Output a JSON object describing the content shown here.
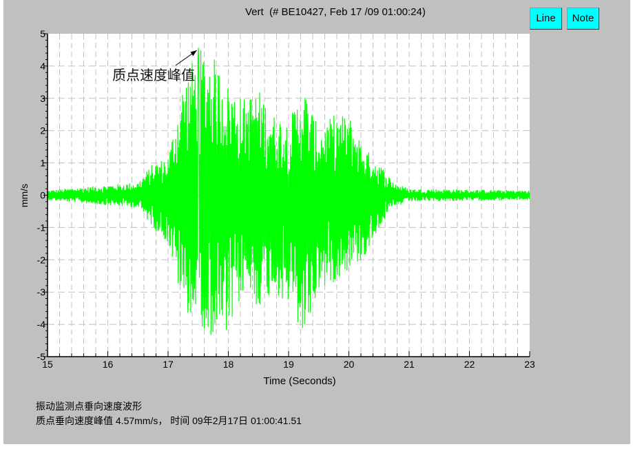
{
  "header": {
    "title": "Vert  (# BE10427, Feb 17 /09 01:00:24)",
    "buttons": [
      {
        "label": "Line"
      },
      {
        "label": "Note"
      }
    ]
  },
  "colors": {
    "background": "#c0c0c0",
    "plot_background": "#ffffff",
    "waveform": "#00ff00",
    "grid": "#c0c0c0",
    "button": "#00ffff"
  },
  "chart_data": {
    "type": "line",
    "title": "Vert  (# BE10427, Feb 17 /09 01:00:24)",
    "xlabel": "Time (Seconds)",
    "ylabel": "mm/s",
    "xlim": [
      15,
      23
    ],
    "ylim": [
      -5,
      5
    ],
    "xticks": [
      "15",
      "16",
      "17",
      "18",
      "19",
      "20",
      "21",
      "22",
      "23"
    ],
    "yticks": [
      "5",
      "4",
      "3",
      "2",
      "1",
      "0",
      "-1",
      "-2",
      "-3",
      "-4",
      "-5"
    ],
    "grid": true,
    "grid_style": "dashed",
    "annotation": {
      "text": "质点速度峰值",
      "x": 17.5,
      "y": 4.57
    },
    "peak": {
      "t": 17.5,
      "value": 4.57
    },
    "envelope": {
      "t": [
        15,
        16.5,
        16.75,
        17.0,
        17.25,
        17.5,
        17.75,
        18.0,
        18.25,
        18.5,
        18.75,
        19.0,
        19.25,
        19.5,
        19.75,
        20.0,
        20.25,
        20.5,
        20.75,
        21.0,
        23
      ],
      "max": [
        0.15,
        0.4,
        1.0,
        1.2,
        3.5,
        4.57,
        4.3,
        3.4,
        3.0,
        3.3,
        2.5,
        2.3,
        3.4,
        2.0,
        2.5,
        2.5,
        1.5,
        1.0,
        0.4,
        0.2,
        0.15
      ],
      "min": [
        -0.15,
        -0.4,
        -1.0,
        -1.5,
        -3.5,
        -4.0,
        -4.4,
        -4.5,
        -3.0,
        -3.5,
        -3.0,
        -3.5,
        -4.5,
        -3.0,
        -2.7,
        -2.3,
        -2.0,
        -1.0,
        -0.4,
        -0.2,
        -0.15
      ]
    }
  },
  "caption": {
    "line1": "振动监测点垂向速度波形",
    "line2": "质点垂向速度峰值 4.57mm/s， 时间 09年2月17日 01:00:41.51"
  }
}
